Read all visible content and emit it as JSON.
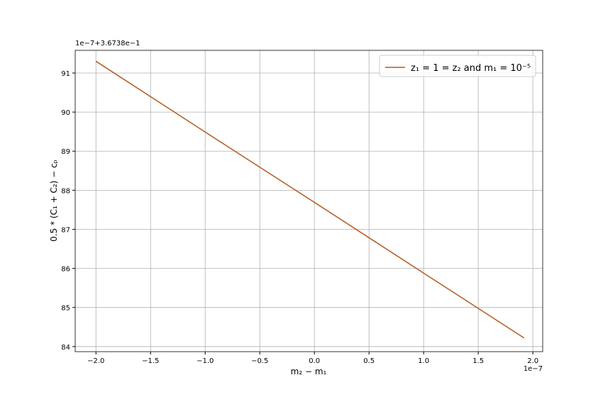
{
  "chart_data": {
    "type": "line",
    "xlabel": "m₂ − m₁",
    "ylabel": "0.5 * (C₁ + C₂) − cₚ",
    "x_offset": "1e−7",
    "y_offset": "1e−7+3.6738e−1",
    "x": [
      -2.0,
      -1.0,
      0.0,
      1.0,
      1.92
    ],
    "series": [
      {
        "name": "z₁ = 1 = z₂ and m₁ = 10⁻⁵",
        "color": "#b35a1f",
        "values": [
          91.3,
          89.49,
          87.69,
          85.88,
          84.22
        ]
      }
    ],
    "xlim": [
      -2.19,
      2.09
    ],
    "ylim": [
      83.87,
      91.58
    ],
    "xticks": [
      {
        "value": -2.0,
        "label": "−2.0"
      },
      {
        "value": -1.5,
        "label": "−1.5"
      },
      {
        "value": -1.0,
        "label": "−1.0"
      },
      {
        "value": -0.5,
        "label": "−0.5"
      },
      {
        "value": 0.0,
        "label": "0.0"
      },
      {
        "value": 0.5,
        "label": "0.5"
      },
      {
        "value": 1.0,
        "label": "1.0"
      },
      {
        "value": 1.5,
        "label": "1.5"
      },
      {
        "value": 2.0,
        "label": "2.0"
      }
    ],
    "yticks": [
      84,
      85,
      86,
      87,
      88,
      89,
      90,
      91
    ],
    "grid": true,
    "legend": "upper right"
  }
}
